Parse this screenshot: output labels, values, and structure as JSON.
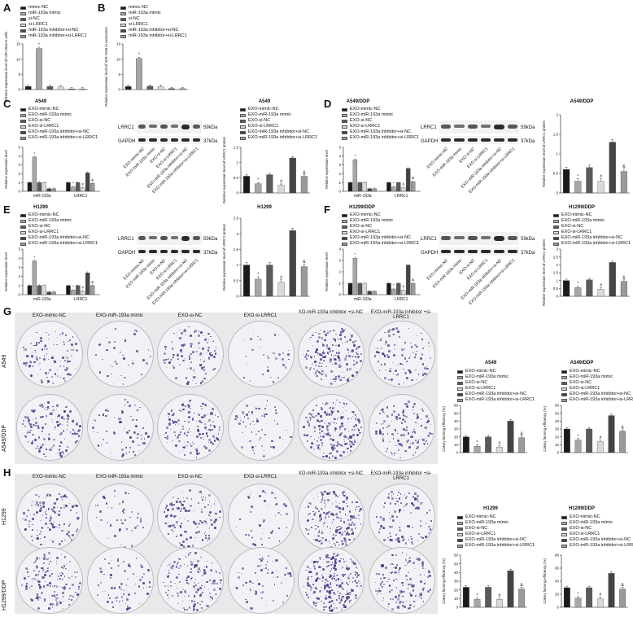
{
  "panels": {
    "A": {
      "letter": "A"
    },
    "B": {
      "letter": "B"
    },
    "C": {
      "letter": "C"
    },
    "D": {
      "letter": "D"
    },
    "E": {
      "letter": "E"
    },
    "F": {
      "letter": "F"
    },
    "G": {
      "letter": "G"
    },
    "H": {
      "letter": "H"
    }
  },
  "legend_ab": [
    "mimic-NC",
    "miR-193a mimic",
    "si-NC",
    "si-LRRC1",
    "miR-193a inhibitor+si-NC",
    "miR-193a inhibitor+si-LRRC1"
  ],
  "legend_exo": [
    "EXO-mimic-NC",
    "EXO-miR-193a mimic",
    "EXO-si-NC",
    "EXO-si-LRRC1",
    "EXO-miR-193a inhibitor+si-NC",
    "EXO-miR-193a inhibitor+si-LRRC1"
  ],
  "colors": [
    "#1a1a1a",
    "#a6a6a6",
    "#5a5a5a",
    "#d9d9d9",
    "#444444",
    "#9a9a9a"
  ],
  "cell_lines": {
    "C": "A549",
    "D": "A549/DDP",
    "E": "H1299",
    "F": "H1299/DDP"
  },
  "wb": {
    "lrrc1": "LRRC1",
    "gapdh": "GAPDH",
    "kda_lrrc1": "59kDa",
    "kda_gapdh": "37kDa",
    "lanes": [
      "EXO-mimic-NC",
      "EXO-miR-193a mimic",
      "EXO-si-NC",
      "EXO-si-LRRC1",
      "EXO-miR-193a inhibitor+si-NC",
      "EXO-miR-193a inhibitor+si-LRRC1"
    ]
  },
  "axis_labels": {
    "a_y": "Relative expression level of miR-193a in cells",
    "b_y": "Relative expression level of miR-193a in exosomes",
    "rel_expr": "Relative expression level",
    "prot": "Relative expression level of LRRC1 protein",
    "colony": "Colony forming efficiency (%)",
    "mir": "miR-193a",
    "lrrc1": "LRRC1"
  },
  "colony_cols": [
    "EXO-mimic-NC",
    "EXO-miR-193a mimic",
    "EXO-si-NC",
    "EXO-si-LRRC1",
    "XO-miR-193a inhibitor +si-NC",
    "EXO-miR-193a inhibitor +si-LRRC1"
  ],
  "colony_rows": {
    "G": [
      "A549",
      "A549/DDP"
    ],
    "H": [
      "H1299",
      "H1299/DDP"
    ]
  },
  "sig_marks": {
    "star": "*",
    "hash": "#",
    "amp": "&"
  },
  "chart_data": [
    {
      "type": "bar",
      "id": "A",
      "categories": [
        "mimic-NC",
        "miR-193a mimic",
        "si-NC",
        "si-LRRC1",
        "miR-193a inhibitor+si-NC",
        "miR-193a inhibitor+si-LRRC1"
      ],
      "values": [
        1.0,
        13.5,
        1.0,
        0.9,
        0.2,
        0.2
      ],
      "ylim": [
        0,
        15
      ],
      "yticks": [
        0,
        5,
        10,
        15
      ],
      "ylabel": "Relative expression level of miR-193a in cells"
    },
    {
      "type": "bar",
      "id": "B",
      "categories": [
        "mimic-NC",
        "miR-193a mimic",
        "si-NC",
        "si-LRRC1",
        "miR-193a inhibitor+si-NC",
        "miR-193a inhibitor+si-LRRC1"
      ],
      "values": [
        1.0,
        10.2,
        1.1,
        1.0,
        0.3,
        0.3
      ],
      "ylim": [
        0,
        15
      ],
      "yticks": [
        0,
        5,
        10,
        15
      ],
      "ylabel": "Relative expression level of miR-193a in exosomes"
    },
    {
      "type": "bar",
      "id": "C-expr",
      "title": "A549",
      "groups": [
        "miR-193a",
        "LRRC1"
      ],
      "series": [
        {
          "name": "EXO-mimic-NC",
          "values": [
            1.0,
            1.0
          ]
        },
        {
          "name": "EXO-miR-193a mimic",
          "values": [
            3.9,
            0.5
          ]
        },
        {
          "name": "EXO-si-NC",
          "values": [
            1.0,
            1.0
          ]
        },
        {
          "name": "EXO-si-LRRC1",
          "values": [
            1.0,
            0.4
          ]
        },
        {
          "name": "EXO-miR-193a inhibitor+si-NC",
          "values": [
            0.3,
            2.1
          ]
        },
        {
          "name": "EXO-miR-193a inhibitor+si-LRRC1",
          "values": [
            0.3,
            0.9
          ]
        }
      ],
      "ylim": [
        0,
        5
      ],
      "yticks": [
        0,
        1,
        2,
        3,
        4,
        5
      ]
    },
    {
      "type": "bar",
      "id": "C-prot",
      "title": "A549",
      "categories": [
        "EXO-mimic-NC",
        "EXO-miR-193a mimic",
        "EXO-si-NC",
        "EXO-si-LRRC1",
        "EXO-miR-193a inhibitor+si-NC",
        "EXO-miR-193a inhibitor+si-LRRC1"
      ],
      "values": [
        0.55,
        0.3,
        0.6,
        0.25,
        1.15,
        0.55
      ],
      "ylim": [
        0,
        1.5
      ],
      "yticks": [
        0,
        0.5,
        1.0,
        1.5
      ]
    },
    {
      "type": "bar",
      "id": "D-expr",
      "title": "A549/DDP",
      "groups": [
        "miR-193a",
        "LRRC1"
      ],
      "series": [
        {
          "name": "EXO-mimic-NC",
          "values": [
            1.0,
            1.0
          ]
        },
        {
          "name": "EXO-miR-193a mimic",
          "values": [
            3.6,
            0.5
          ]
        },
        {
          "name": "EXO-si-NC",
          "values": [
            1.0,
            1.0
          ]
        },
        {
          "name": "EXO-si-LRRC1",
          "values": [
            1.0,
            0.4
          ]
        },
        {
          "name": "EXO-miR-193a inhibitor+si-NC",
          "values": [
            0.3,
            2.6
          ]
        },
        {
          "name": "EXO-miR-193a inhibitor+si-LRRC1",
          "values": [
            0.3,
            1.1
          ]
        }
      ],
      "ylim": [
        0,
        5
      ],
      "yticks": [
        0,
        1,
        2,
        3,
        4,
        5
      ]
    },
    {
      "type": "bar",
      "id": "D-prot",
      "title": "A549/DDP",
      "categories": [
        "EXO-mimic-NC",
        "EXO-miR-193a mimic",
        "EXO-si-NC",
        "EXO-si-LRRC1",
        "EXO-miR-193a inhibitor+si-NC",
        "EXO-miR-193a inhibitor+si-LRRC1"
      ],
      "values": [
        0.6,
        0.3,
        0.65,
        0.3,
        1.3,
        0.55
      ],
      "ylim": [
        0,
        2.0
      ],
      "yticks": [
        0,
        0.5,
        1.0,
        1.5,
        2.0
      ]
    },
    {
      "type": "bar",
      "id": "E-expr",
      "title": "H1299",
      "groups": [
        "miR-193a",
        "LRRC1"
      ],
      "series": [
        {
          "name": "EXO-mimic-NC",
          "values": [
            1.0,
            1.0
          ]
        },
        {
          "name": "EXO-miR-193a mimic",
          "values": [
            3.7,
            0.5
          ]
        },
        {
          "name": "EXO-si-NC",
          "values": [
            1.0,
            1.0
          ]
        },
        {
          "name": "EXO-si-LRRC1",
          "values": [
            1.0,
            0.4
          ]
        },
        {
          "name": "EXO-miR-193a inhibitor+si-NC",
          "values": [
            0.3,
            2.4
          ]
        },
        {
          "name": "EXO-miR-193a inhibitor+si-LRRC1",
          "values": [
            0.3,
            1.0
          ]
        }
      ],
      "ylim": [
        0,
        5
      ],
      "yticks": [
        0,
        1,
        2,
        3,
        4,
        5
      ]
    },
    {
      "type": "bar",
      "id": "E-prot",
      "title": "H1299",
      "categories": [
        "EXO-mimic-NC",
        "EXO-miR-193a mimic",
        "EXO-si-NC",
        "EXO-si-LRRC1",
        "EXO-miR-193a inhibitor+si-NC",
        "EXO-miR-193a inhibitor+si-LRRC1"
      ],
      "values": [
        1.0,
        0.55,
        1.0,
        0.45,
        2.1,
        0.95
      ],
      "ylim": [
        0,
        2.5
      ],
      "yticks": [
        0,
        0.5,
        1.0,
        1.5,
        2.0,
        2.5
      ]
    },
    {
      "type": "bar",
      "id": "F-expr",
      "title": "H1299/DDP",
      "groups": [
        "miR-193a",
        "LRRC1"
      ],
      "series": [
        {
          "name": "EXO-mimic-NC",
          "values": [
            1.0,
            1.0
          ]
        },
        {
          "name": "EXO-miR-193a mimic",
          "values": [
            3.2,
            0.5
          ]
        },
        {
          "name": "EXO-si-NC",
          "values": [
            1.0,
            1.0
          ]
        },
        {
          "name": "EXO-si-LRRC1",
          "values": [
            1.0,
            0.4
          ]
        },
        {
          "name": "EXO-miR-193a inhibitor+si-NC",
          "values": [
            0.3,
            2.6
          ]
        },
        {
          "name": "EXO-miR-193a inhibitor+si-LRRC1",
          "values": [
            0.3,
            1.0
          ]
        }
      ],
      "ylim": [
        0,
        4
      ],
      "yticks": [
        0,
        1,
        2,
        3,
        4
      ]
    },
    {
      "type": "bar",
      "id": "F-prot",
      "title": "H1299/DDP",
      "categories": [
        "EXO-mimic-NC",
        "EXO-miR-193a mimic",
        "EXO-si-NC",
        "EXO-si-LRRC1",
        "EXO-miR-193a inhibitor+si-NC",
        "EXO-miR-193a inhibitor+si-LRRC1"
      ],
      "values": [
        1.0,
        0.55,
        1.05,
        0.45,
        2.15,
        0.95
      ],
      "ylim": [
        0,
        3.0
      ],
      "yticks": [
        0,
        0.5,
        1.0,
        1.5,
        2.0,
        2.5,
        3.0
      ]
    },
    {
      "type": "bar",
      "id": "G-A549",
      "title": "A549",
      "categories": [
        "EXO-mimic-NC",
        "EXO-miR-193a mimic",
        "EXO-si-NC",
        "EXO-si-LRRC1",
        "EXO-miR-193a inhibitor+si-NC",
        "EXO-miR-193a inhibitor+si-LRRC1"
      ],
      "values": [
        20,
        8,
        20,
        7,
        40,
        19
      ],
      "ylim": [
        0,
        60
      ],
      "yticks": [
        0,
        10,
        20,
        30,
        40,
        50,
        60
      ]
    },
    {
      "type": "bar",
      "id": "G-A549DDP",
      "title": "A549/DDP",
      "categories": [
        "EXO-mimic-NC",
        "EXO-miR-193a mimic",
        "EXO-si-NC",
        "EXO-si-LRRC1",
        "EXO-miR-193a inhibitor+si-NC",
        "EXO-miR-193a inhibitor+si-LRRC1"
      ],
      "values": [
        30,
        16,
        30,
        14,
        47,
        27
      ],
      "ylim": [
        0,
        60
      ],
      "yticks": [
        0,
        10,
        20,
        30,
        40,
        50,
        60
      ]
    },
    {
      "type": "bar",
      "id": "H-H1299",
      "title": "H1299",
      "categories": [
        "EXO-mimic-NC",
        "EXO-miR-193a mimic",
        "EXO-si-NC",
        "EXO-si-LRRC1",
        "EXO-miR-193a inhibitor+si-NC",
        "EXO-miR-193a inhibitor+si-LRRC1"
      ],
      "values": [
        23,
        9,
        23,
        9,
        42,
        21
      ],
      "ylim": [
        0,
        60
      ],
      "yticks": [
        0,
        10,
        20,
        30,
        40,
        50,
        60
      ]
    },
    {
      "type": "bar",
      "id": "H-H1299DDP",
      "title": "H1299/DDP",
      "categories": [
        "EXO-mimic-NC",
        "EXO-miR-193a mimic",
        "EXO-si-NC",
        "EXO-si-LRRC1",
        "EXO-miR-193a inhibitor+si-NC",
        "EXO-miR-193a inhibitor+si-LRRC1"
      ],
      "values": [
        30,
        14,
        30,
        13,
        52,
        28
      ],
      "ylim": [
        0,
        80
      ],
      "yticks": [
        0,
        20,
        40,
        60,
        80
      ]
    }
  ]
}
